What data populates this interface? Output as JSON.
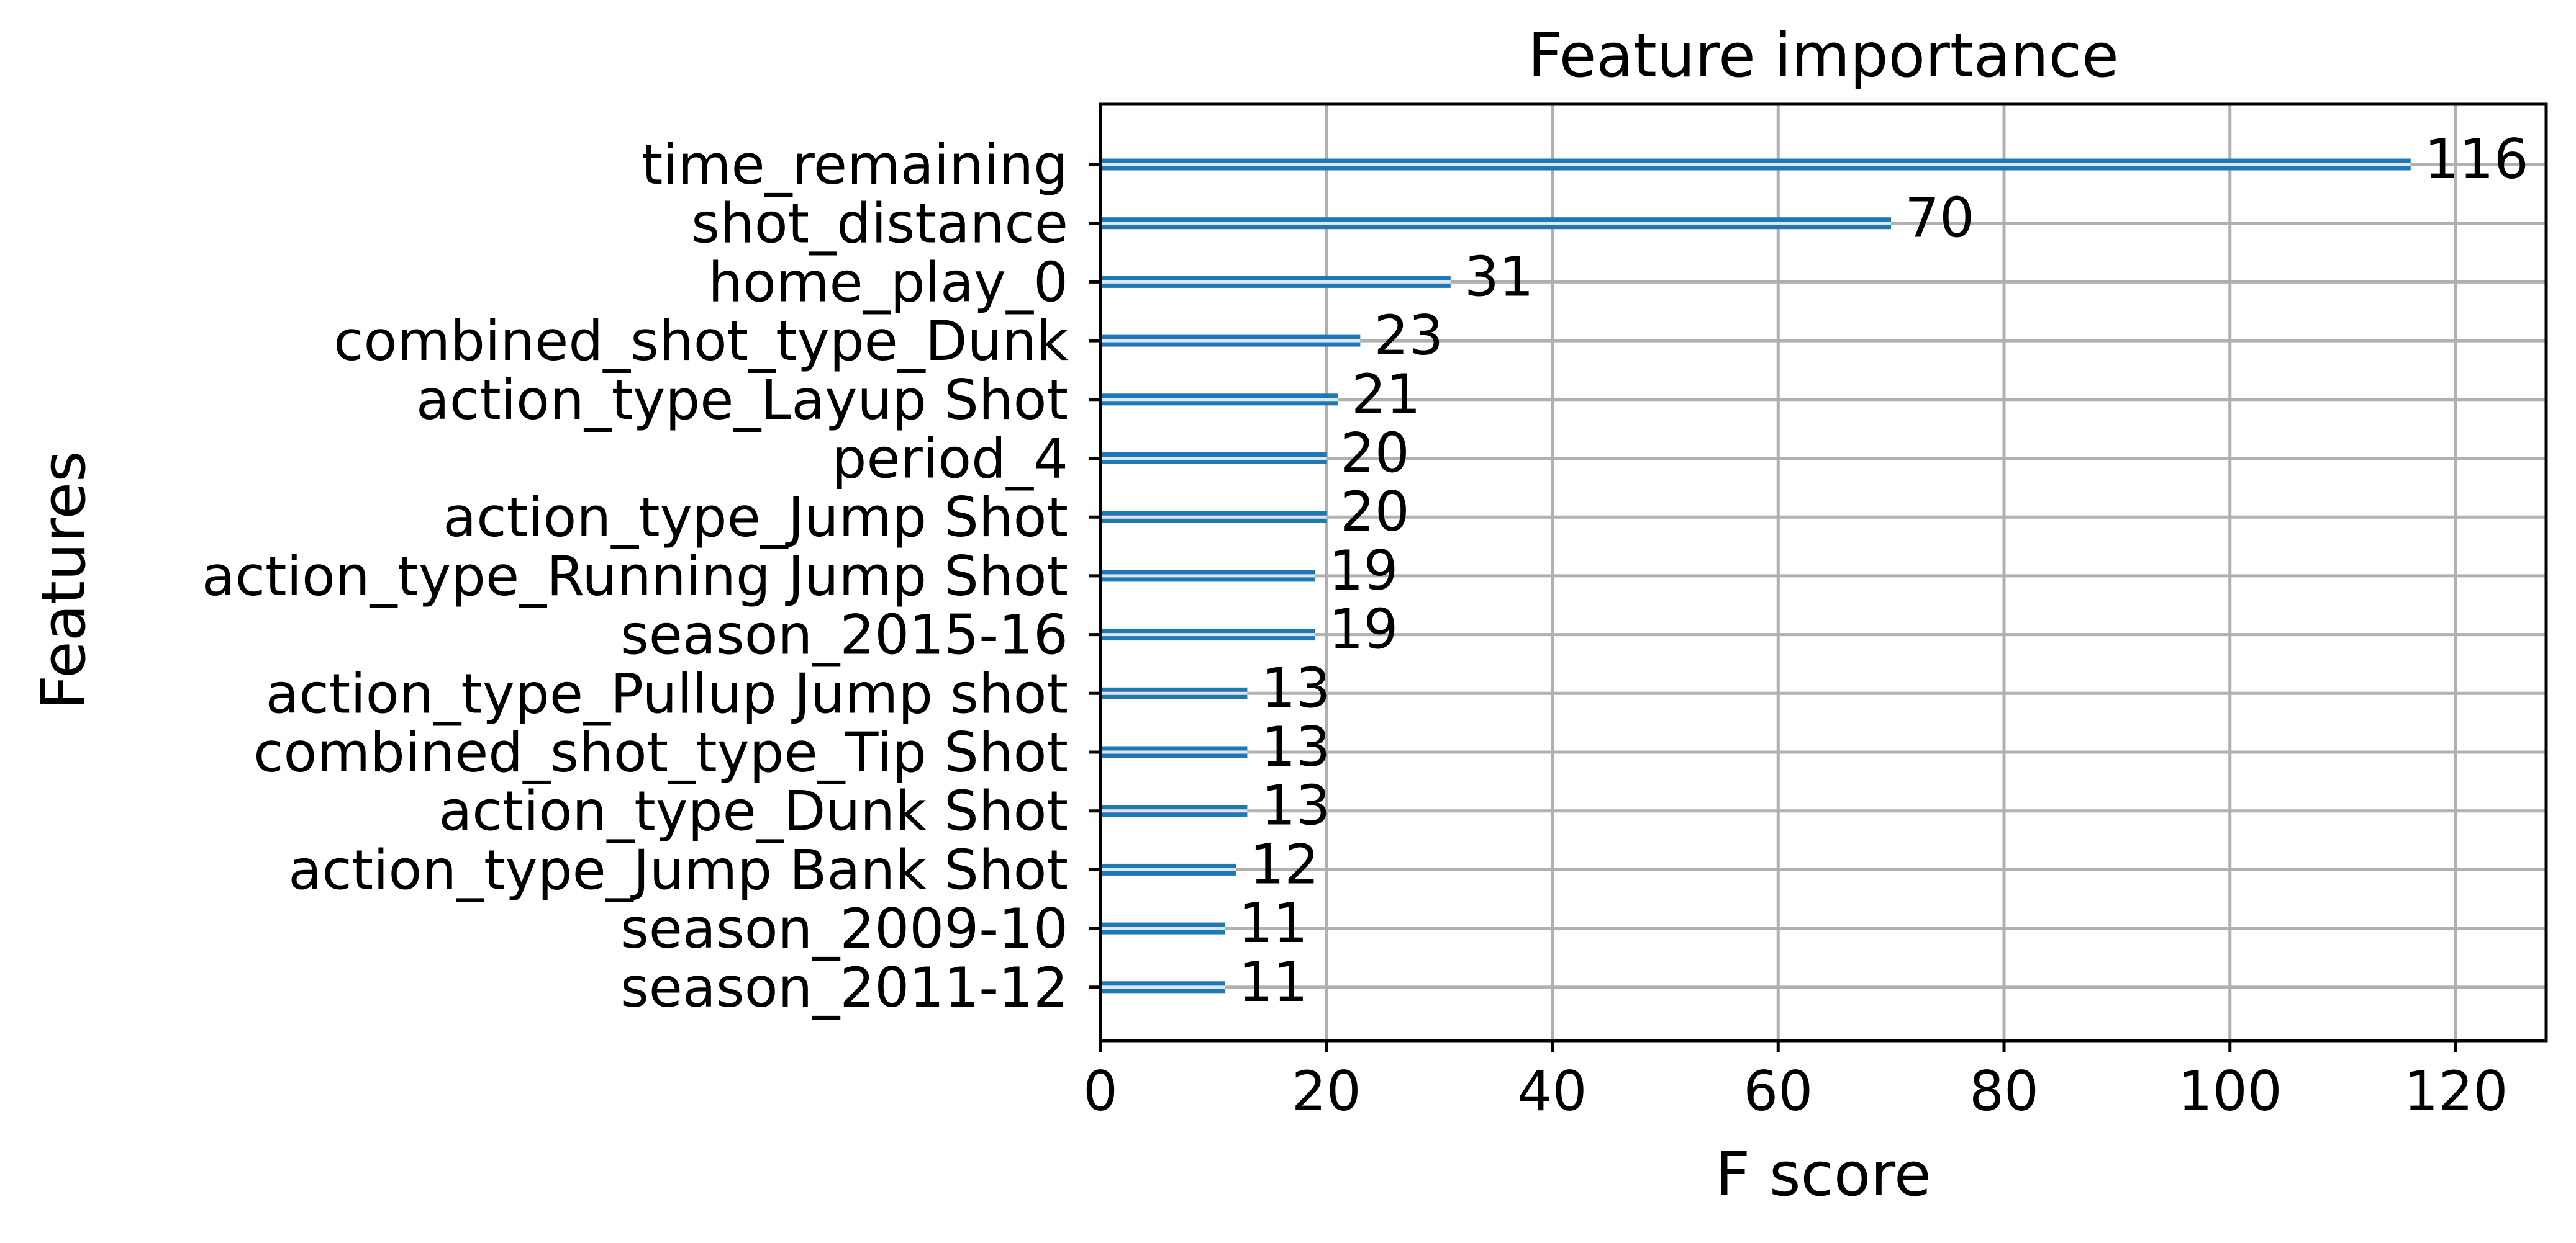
{
  "chart_data": {
    "type": "bar",
    "orientation": "horizontal",
    "title": "Feature importance",
    "xlabel": "F score",
    "ylabel": "Features",
    "xlim": [
      0,
      128
    ],
    "xticks": [
      0,
      20,
      40,
      60,
      80,
      100,
      120
    ],
    "grid": true,
    "bar_color": "#1f77b4",
    "categories": [
      "time_remaining",
      "shot_distance",
      "home_play_0",
      "combined_shot_type_Dunk",
      "action_type_Layup Shot",
      "period_4",
      "action_type_Jump Shot",
      "action_type_Running Jump Shot",
      "season_2015-16",
      "action_type_Pullup Jump shot",
      "combined_shot_type_Tip Shot",
      "action_type_Dunk Shot",
      "action_type_Jump Bank Shot",
      "season_2009-10",
      "season_2011-12"
    ],
    "values": [
      116,
      70,
      31,
      23,
      21,
      20,
      20,
      19,
      19,
      13,
      13,
      13,
      12,
      11,
      11
    ]
  }
}
